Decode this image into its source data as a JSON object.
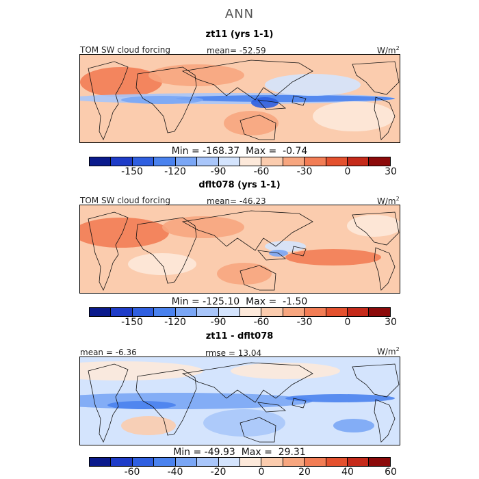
{
  "title": "ANN",
  "units": "W/m",
  "units_sup": "2",
  "panels": [
    {
      "subtitle": "zt11 (yrs 1-1)",
      "left_label": "TOM SW cloud forcing",
      "center_label": "mean=  -52.59",
      "minmax": "Min = -168.37  Max =  -0.74",
      "scheme": "negative-dominant"
    },
    {
      "subtitle": "dflt078 (yrs 1-1)",
      "left_label": "TOM SW cloud forcing",
      "center_label": "mean=  -46.23",
      "minmax": "Min = -125.10  Max =  -1.50",
      "scheme": "positive-dominant"
    },
    {
      "subtitle": "zt11 - dflt078",
      "left_label": "mean =   -6.36",
      "center_label": "rmse =   13.04",
      "minmax": "Min = -49.93  Max =  29.31",
      "scheme": "difference"
    }
  ],
  "colorbar_colors": [
    "#0a1a8c",
    "#1e3cc8",
    "#2f5fe0",
    "#4a82ee",
    "#7aa6f5",
    "#a9c6fa",
    "#d4e4fd",
    "#fde9da",
    "#fbccae",
    "#f7a67f",
    "#f27d55",
    "#e4512e",
    "#c52a1a",
    "#8c0a0a"
  ],
  "colorbar_abs": {
    "ticks": [
      "-150",
      "-120",
      "-90",
      "-60",
      "-30",
      "0",
      "30"
    ]
  },
  "colorbar_diff": {
    "ticks": [
      "-60",
      "-40",
      "-20",
      "0",
      "20",
      "40",
      "60"
    ]
  }
}
